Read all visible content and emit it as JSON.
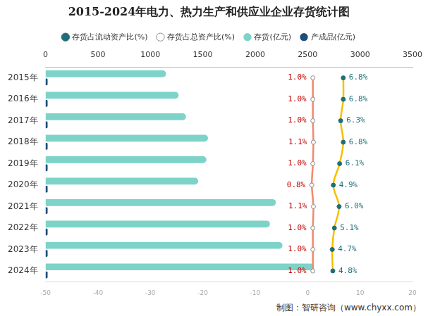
{
  "chart_data": {
    "type": "bar",
    "title": "2015-2024年电力、热力生产和供应业企业存货统计图",
    "orientation": "horizontal",
    "categories": [
      "2015年",
      "2016年",
      "2017年",
      "2018年",
      "2019年",
      "2020年",
      "2021年",
      "2022年",
      "2023年",
      "2024年"
    ],
    "series": [
      {
        "name": "存货(亿元)",
        "type": "bar",
        "color": "#7dd3c8",
        "values": [
          1150,
          1270,
          1340,
          1550,
          1535,
          1457,
          2197,
          2140,
          2260,
          2560
        ]
      },
      {
        "name": "产成品(亿元)",
        "type": "bar",
        "color": "#1f4e79",
        "values": [
          20,
          20,
          20,
          20,
          20,
          20,
          20,
          20,
          20,
          20
        ]
      },
      {
        "name": "存货占流动资产比(%)",
        "type": "line",
        "axis": "y2",
        "color": "#f5c000",
        "marker": "circle",
        "data_labels": true,
        "values": [
          6.8,
          6.8,
          6.3,
          6.8,
          6.1,
          4.9,
          6.0,
          5.1,
          4.7,
          4.8
        ],
        "value_labels": [
          "6.8%",
          "6.8%",
          "6.3%",
          "6.8%",
          "6.1%",
          "4.9%",
          "6.0%",
          "5.1%",
          "4.7%",
          "4.8%"
        ]
      },
      {
        "name": "存货占总资产比(%)",
        "type": "line",
        "axis": "y2",
        "color": "#f08a6e",
        "marker": "circle",
        "data_labels": true,
        "values": [
          1.0,
          1.0,
          1.0,
          1.1,
          1.0,
          0.8,
          1.1,
          1.0,
          1.0,
          1.0
        ],
        "value_labels": [
          "1.0%",
          "1.0%",
          "1.0%",
          "1.1%",
          "1.0%",
          "0.8%",
          "1.1%",
          "1.0%",
          "1.0%",
          "1.0%"
        ]
      }
    ],
    "ylim": [
      0,
      3500
    ],
    "yticks": [
      0,
      500,
      1000,
      1500,
      2000,
      2500,
      3000,
      3500
    ],
    "y2lim": [
      -50,
      20
    ],
    "y2ticks": [
      -50,
      -40,
      -30,
      -20,
      -10,
      0,
      10,
      20
    ],
    "grid": false,
    "legend": "top",
    "annotations": [
      "制图：智研咨询（www.chyxx.com）"
    ]
  }
}
